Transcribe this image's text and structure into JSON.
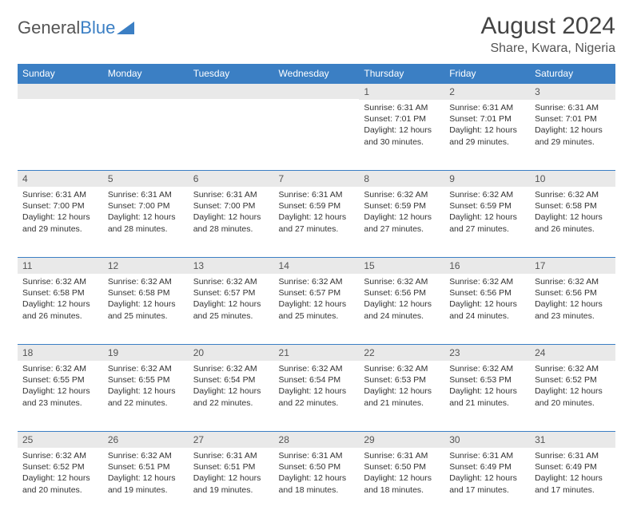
{
  "logo": {
    "text1": "General",
    "text2": "Blue"
  },
  "title": "August 2024",
  "subtitle": "Share, Kwara, Nigeria",
  "colors": {
    "header_bg": "#3b7fc4",
    "header_text": "#ffffff",
    "daynum_bg": "#e9e9e9",
    "daynum_text": "#555555",
    "body_text": "#333333",
    "rule": "#3b7fc4"
  },
  "day_headers": [
    "Sunday",
    "Monday",
    "Tuesday",
    "Wednesday",
    "Thursday",
    "Friday",
    "Saturday"
  ],
  "weeks": [
    [
      null,
      null,
      null,
      null,
      {
        "n": "1",
        "sunrise": "6:31 AM",
        "sunset": "7:01 PM",
        "daylight": "12 hours and 30 minutes."
      },
      {
        "n": "2",
        "sunrise": "6:31 AM",
        "sunset": "7:01 PM",
        "daylight": "12 hours and 29 minutes."
      },
      {
        "n": "3",
        "sunrise": "6:31 AM",
        "sunset": "7:01 PM",
        "daylight": "12 hours and 29 minutes."
      }
    ],
    [
      {
        "n": "4",
        "sunrise": "6:31 AM",
        "sunset": "7:00 PM",
        "daylight": "12 hours and 29 minutes."
      },
      {
        "n": "5",
        "sunrise": "6:31 AM",
        "sunset": "7:00 PM",
        "daylight": "12 hours and 28 minutes."
      },
      {
        "n": "6",
        "sunrise": "6:31 AM",
        "sunset": "7:00 PM",
        "daylight": "12 hours and 28 minutes."
      },
      {
        "n": "7",
        "sunrise": "6:31 AM",
        "sunset": "6:59 PM",
        "daylight": "12 hours and 27 minutes."
      },
      {
        "n": "8",
        "sunrise": "6:32 AM",
        "sunset": "6:59 PM",
        "daylight": "12 hours and 27 minutes."
      },
      {
        "n": "9",
        "sunrise": "6:32 AM",
        "sunset": "6:59 PM",
        "daylight": "12 hours and 27 minutes."
      },
      {
        "n": "10",
        "sunrise": "6:32 AM",
        "sunset": "6:58 PM",
        "daylight": "12 hours and 26 minutes."
      }
    ],
    [
      {
        "n": "11",
        "sunrise": "6:32 AM",
        "sunset": "6:58 PM",
        "daylight": "12 hours and 26 minutes."
      },
      {
        "n": "12",
        "sunrise": "6:32 AM",
        "sunset": "6:58 PM",
        "daylight": "12 hours and 25 minutes."
      },
      {
        "n": "13",
        "sunrise": "6:32 AM",
        "sunset": "6:57 PM",
        "daylight": "12 hours and 25 minutes."
      },
      {
        "n": "14",
        "sunrise": "6:32 AM",
        "sunset": "6:57 PM",
        "daylight": "12 hours and 25 minutes."
      },
      {
        "n": "15",
        "sunrise": "6:32 AM",
        "sunset": "6:56 PM",
        "daylight": "12 hours and 24 minutes."
      },
      {
        "n": "16",
        "sunrise": "6:32 AM",
        "sunset": "6:56 PM",
        "daylight": "12 hours and 24 minutes."
      },
      {
        "n": "17",
        "sunrise": "6:32 AM",
        "sunset": "6:56 PM",
        "daylight": "12 hours and 23 minutes."
      }
    ],
    [
      {
        "n": "18",
        "sunrise": "6:32 AM",
        "sunset": "6:55 PM",
        "daylight": "12 hours and 23 minutes."
      },
      {
        "n": "19",
        "sunrise": "6:32 AM",
        "sunset": "6:55 PM",
        "daylight": "12 hours and 22 minutes."
      },
      {
        "n": "20",
        "sunrise": "6:32 AM",
        "sunset": "6:54 PM",
        "daylight": "12 hours and 22 minutes."
      },
      {
        "n": "21",
        "sunrise": "6:32 AM",
        "sunset": "6:54 PM",
        "daylight": "12 hours and 22 minutes."
      },
      {
        "n": "22",
        "sunrise": "6:32 AM",
        "sunset": "6:53 PM",
        "daylight": "12 hours and 21 minutes."
      },
      {
        "n": "23",
        "sunrise": "6:32 AM",
        "sunset": "6:53 PM",
        "daylight": "12 hours and 21 minutes."
      },
      {
        "n": "24",
        "sunrise": "6:32 AM",
        "sunset": "6:52 PM",
        "daylight": "12 hours and 20 minutes."
      }
    ],
    [
      {
        "n": "25",
        "sunrise": "6:32 AM",
        "sunset": "6:52 PM",
        "daylight": "12 hours and 20 minutes."
      },
      {
        "n": "26",
        "sunrise": "6:32 AM",
        "sunset": "6:51 PM",
        "daylight": "12 hours and 19 minutes."
      },
      {
        "n": "27",
        "sunrise": "6:31 AM",
        "sunset": "6:51 PM",
        "daylight": "12 hours and 19 minutes."
      },
      {
        "n": "28",
        "sunrise": "6:31 AM",
        "sunset": "6:50 PM",
        "daylight": "12 hours and 18 minutes."
      },
      {
        "n": "29",
        "sunrise": "6:31 AM",
        "sunset": "6:50 PM",
        "daylight": "12 hours and 18 minutes."
      },
      {
        "n": "30",
        "sunrise": "6:31 AM",
        "sunset": "6:49 PM",
        "daylight": "12 hours and 17 minutes."
      },
      {
        "n": "31",
        "sunrise": "6:31 AM",
        "sunset": "6:49 PM",
        "daylight": "12 hours and 17 minutes."
      }
    ]
  ],
  "labels": {
    "sunrise": "Sunrise:",
    "sunset": "Sunset:",
    "daylight": "Daylight:"
  }
}
